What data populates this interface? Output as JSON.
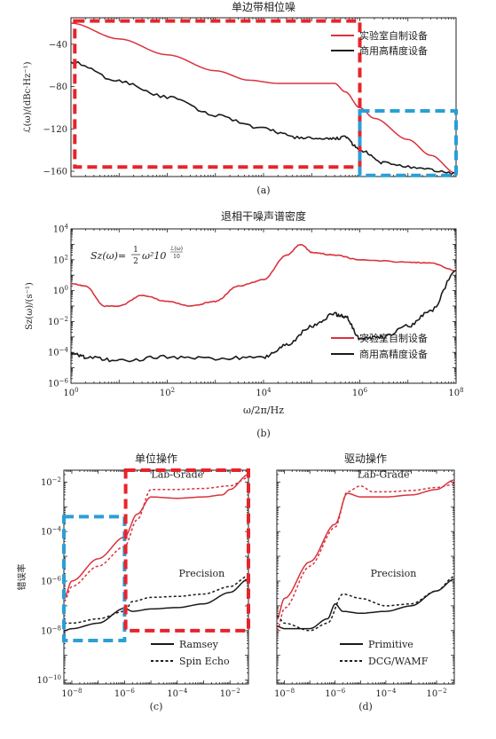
{
  "colors": {
    "lab": "#d9333d",
    "precision": "#1a1a1a",
    "box_red": "#e8232b",
    "box_blue": "#2a9fd6"
  },
  "chart_data": [
    {
      "id": "a",
      "type": "line",
      "title": "单边带相位噪",
      "ylabel": "ℒ(ω)/(dBc·Hz⁻¹)",
      "xlabel": "",
      "x_scale": "log",
      "xlim": [
        1,
        100000000
      ],
      "ylim": [
        -165,
        -15
      ],
      "yticks": [
        -160,
        -120,
        -80,
        -40
      ],
      "yticklabels": [
        "−160",
        "−120",
        "−80",
        "−40"
      ],
      "panel_label": "(a)",
      "legend": {
        "placement": "top-right",
        "entries": [
          "实验室自制设备",
          "商用高精度设备"
        ]
      },
      "series": [
        {
          "name": "实验室自制设备",
          "color_key": "lab",
          "points": [
            [
              1,
              -20
            ],
            [
              10,
              -35
            ],
            [
              100,
              -50
            ],
            [
              1000,
              -65
            ],
            [
              5000,
              -74
            ],
            [
              20000,
              -77
            ],
            [
              100000,
              -77
            ],
            [
              300000,
              -77
            ],
            [
              500000,
              -85
            ],
            [
              1000000,
              -100
            ],
            [
              2000000,
              -110
            ],
            [
              10000000,
              -130
            ],
            [
              30000000,
              -145
            ],
            [
              100000000,
              -162
            ]
          ]
        },
        {
          "name": "商用高精度设备",
          "color_key": "precision",
          "noise": 1.5,
          "points": [
            [
              1,
              -57
            ],
            [
              10,
              -75
            ],
            [
              100,
              -90
            ],
            [
              1000,
              -107
            ],
            [
              10000,
              -120
            ],
            [
              50000,
              -128
            ],
            [
              200000,
              -130
            ],
            [
              500000,
              -128
            ],
            [
              1000000,
              -140
            ],
            [
              3000000,
              -152
            ],
            [
              20000000,
              -158
            ],
            [
              100000000,
              -162
            ]
          ]
        }
      ],
      "boxes": [
        {
          "color_key": "box_red",
          "x": [
            1.2,
            1000000
          ],
          "y": [
            -156,
            -18
          ]
        },
        {
          "color_key": "box_blue",
          "x": [
            1000000,
            100000000
          ],
          "y": [
            -164,
            -103
          ]
        }
      ]
    },
    {
      "id": "b",
      "type": "line",
      "title": "退相干噪声谱密度",
      "xlabel": "ω/2π/Hz",
      "ylabel": "Sz(ω)/(s⁻¹)",
      "x_scale": "log",
      "y_scale": "log",
      "xlim": [
        1,
        100000000
      ],
      "ylim": [
        1e-06,
        10000
      ],
      "xticks_exp": [
        0,
        2,
        4,
        6,
        8
      ],
      "yticks_exp": [
        -6,
        -4,
        -2,
        0,
        2,
        4
      ],
      "panel_label": "(b)",
      "legend": {
        "placement": "bottom-right",
        "entries": [
          "实验室自制设备",
          "商用高精度设备"
        ]
      },
      "series": [
        {
          "name": "实验室自制设备",
          "color_key": "lab",
          "noise": 0.03,
          "points": [
            [
              1,
              3
            ],
            [
              2,
              2
            ],
            [
              5,
              0.1
            ],
            [
              10,
              0.1
            ],
            [
              30,
              0.5
            ],
            [
              100,
              0.2
            ],
            [
              300,
              0.1
            ],
            [
              1000,
              0.2
            ],
            [
              3000,
              2
            ],
            [
              10000,
              5
            ],
            [
              30000,
              200
            ],
            [
              60000,
              1000
            ],
            [
              100000,
              300
            ],
            [
              300000,
              200
            ],
            [
              1000000,
              100
            ],
            [
              10000000,
              70
            ],
            [
              30000000,
              60
            ],
            [
              100000000,
              20
            ]
          ]
        },
        {
          "name": "商用高精度设备",
          "color_key": "precision",
          "noise": 0.12,
          "points": [
            [
              1,
              0.0001
            ],
            [
              2,
              5e-05
            ],
            [
              10,
              3e-05
            ],
            [
              100,
              5e-05
            ],
            [
              1000,
              4e-05
            ],
            [
              10000,
              5e-05
            ],
            [
              30000,
              0.0003
            ],
            [
              100000,
              0.005
            ],
            [
              300000,
              0.03
            ],
            [
              500000,
              0.02
            ],
            [
              1000000,
              0.0008
            ],
            [
              3000000,
              0.001
            ],
            [
              10000000,
              0.005
            ],
            [
              30000000,
              0.05
            ],
            [
              100000000,
              20
            ]
          ]
        }
      ],
      "annotation": {
        "prefix": "Sz(ω)=",
        "frac_num": "1",
        "frac_den": "2",
        "body": "ω²10",
        "exp_num": "ℒ(ω)",
        "exp_den": "10"
      }
    },
    {
      "id": "c",
      "type": "line",
      "title": "单位操作",
      "ylabel": "错误率",
      "xlabel": "",
      "x_scale": "log",
      "y_scale": "log",
      "xlim": [
        5e-09,
        0.05
      ],
      "ylim": [
        7e-11,
        0.03
      ],
      "xticks_exp": [
        -8,
        -6,
        -4,
        -2
      ],
      "yticks_exp": [
        -10,
        -8,
        -6,
        -4,
        -2
      ],
      "panel_label": "(c)",
      "text_labels": [
        {
          "text": "Lab-Grade",
          "x": 0.0001,
          "y": 0.015
        },
        {
          "text": "Precision",
          "x": 0.00085,
          "y": 1.5e-06
        }
      ],
      "legend": {
        "placement": "bottom-right",
        "entries": [
          "Ramsey",
          "Spin Echo"
        ]
      },
      "series": [
        {
          "name": "Ramsey",
          "role": "lab",
          "style": "solid",
          "color_key": "lab",
          "points": [
            [
              5e-09,
              2e-07
            ],
            [
              1e-08,
              1e-06
            ],
            [
              1e-07,
              8e-06
            ],
            [
              1e-06,
              6e-05
            ],
            [
              3e-06,
              0.0005
            ],
            [
              1e-05,
              0.0025
            ],
            [
              0.0001,
              0.0022
            ],
            [
              0.001,
              0.0025
            ],
            [
              0.005,
              0.003
            ],
            [
              0.01,
              0.005
            ],
            [
              0.05,
              0.02
            ]
          ]
        },
        {
          "name": "Spin Echo",
          "role": "lab",
          "style": "dashed",
          "color_key": "lab",
          "points": [
            [
              5e-09,
              1.5e-07
            ],
            [
              1e-08,
              6e-07
            ],
            [
              1e-07,
              4e-06
            ],
            [
              1e-06,
              2.5e-05
            ],
            [
              3e-06,
              0.0003
            ],
            [
              1e-05,
              0.005
            ],
            [
              0.0001,
              0.005
            ],
            [
              0.001,
              0.0055
            ],
            [
              0.01,
              0.007
            ],
            [
              0.05,
              0.015
            ]
          ]
        },
        {
          "name": "Ramsey",
          "role": "precision",
          "style": "solid",
          "color_key": "precision",
          "points": [
            [
              5e-09,
              1e-08
            ],
            [
              1e-08,
              1.2e-08
            ],
            [
              1e-07,
              2e-08
            ],
            [
              1e-06,
              8e-08
            ],
            [
              2e-06,
              6e-08
            ],
            [
              1e-05,
              7.5e-08
            ],
            [
              0.0001,
              8.5e-08
            ],
            [
              0.001,
              1.2e-07
            ],
            [
              0.01,
              3.5e-07
            ],
            [
              0.05,
              1.2e-06
            ]
          ]
        },
        {
          "name": "Spin Echo",
          "role": "precision",
          "style": "dashed",
          "color_key": "precision",
          "points": [
            [
              5e-09,
              2e-08
            ],
            [
              1e-08,
              2e-08
            ],
            [
              1e-07,
              3e-08
            ],
            [
              1e-06,
              6e-08
            ],
            [
              2e-06,
              1.5e-07
            ],
            [
              1e-05,
              2.2e-07
            ],
            [
              0.0001,
              2.4e-07
            ],
            [
              0.001,
              3e-07
            ],
            [
              0.01,
              6e-07
            ],
            [
              0.05,
              1.6e-06
            ]
          ]
        }
      ],
      "boxes": [
        {
          "color_key": "box_blue",
          "x": [
            5e-09,
            1e-06
          ],
          "y": [
            4e-09,
            0.0004
          ]
        },
        {
          "color_key": "box_red",
          "x": [
            1.1e-06,
            0.05
          ],
          "y": [
            1e-08,
            0.03
          ]
        }
      ]
    },
    {
      "id": "d",
      "type": "line",
      "title": "驱动操作",
      "ylabel": "",
      "xlabel": "",
      "x_scale": "log",
      "y_scale": "log",
      "xlim": [
        5e-09,
        0.05
      ],
      "ylim": [
        7e-11,
        0.03
      ],
      "xticks_exp": [
        -8,
        -6,
        -4,
        -2
      ],
      "yticks_exp": [],
      "panel_label": "(d)",
      "text_labels": [
        {
          "text": "Lab-Grade",
          "x": 8e-05,
          "y": 0.015
        },
        {
          "text": "Precision",
          "x": 0.0002,
          "y": 1.5e-06
        }
      ],
      "legend": {
        "placement": "bottom-right",
        "entries": [
          "Primitive",
          "DCG/WAMF"
        ]
      },
      "series": [
        {
          "name": "Primitive",
          "role": "lab",
          "style": "solid",
          "color_key": "lab",
          "points": [
            [
              5e-09,
              3e-08
            ],
            [
              1e-08,
              2e-07
            ],
            [
              1e-07,
              6e-06
            ],
            [
              1e-06,
              0.0002
            ],
            [
              3e-06,
              0.0035
            ],
            [
              1e-05,
              0.0025
            ],
            [
              0.0001,
              0.0025
            ],
            [
              0.001,
              0.003
            ],
            [
              0.01,
              0.005
            ],
            [
              0.05,
              0.012
            ]
          ]
        },
        {
          "name": "DCG/WAMF",
          "role": "lab",
          "style": "dashed",
          "color_key": "lab",
          "points": [
            [
              5e-09,
              1e-08
            ],
            [
              1e-08,
              8e-08
            ],
            [
              1e-07,
              4e-06
            ],
            [
              1e-06,
              0.00015
            ],
            [
              3e-06,
              0.004
            ],
            [
              1e-05,
              0.007
            ],
            [
              3e-05,
              0.004
            ],
            [
              0.0001,
              0.004
            ],
            [
              0.001,
              0.0045
            ],
            [
              0.01,
              0.006
            ],
            [
              0.05,
              0.008
            ]
          ]
        },
        {
          "name": "Primitive",
          "role": "precision",
          "style": "solid",
          "color_key": "precision",
          "points": [
            [
              5e-09,
              1.5e-08
            ],
            [
              1e-08,
              1.2e-08
            ],
            [
              1e-07,
              1.2e-08
            ],
            [
              5e-07,
              3e-08
            ],
            [
              1e-06,
              1.2e-07
            ],
            [
              2e-06,
              6e-08
            ],
            [
              1e-05,
              5e-08
            ],
            [
              0.0001,
              6e-08
            ],
            [
              0.001,
              1e-07
            ],
            [
              0.01,
              4e-07
            ],
            [
              0.05,
              1.2e-06
            ]
          ]
        },
        {
          "name": "DCG/WAMF",
          "role": "precision",
          "style": "dashed",
          "color_key": "precision",
          "points": [
            [
              5e-09,
              4e-08
            ],
            [
              1e-08,
              2e-08
            ],
            [
              1e-07,
              1e-08
            ],
            [
              5e-07,
              2e-08
            ],
            [
              2e-06,
              3e-07
            ],
            [
              1e-05,
              2e-07
            ],
            [
              0.0001,
              1e-07
            ],
            [
              0.001,
              1.2e-07
            ],
            [
              0.01,
              4e-07
            ],
            [
              0.05,
              1.5e-06
            ]
          ]
        }
      ]
    }
  ]
}
